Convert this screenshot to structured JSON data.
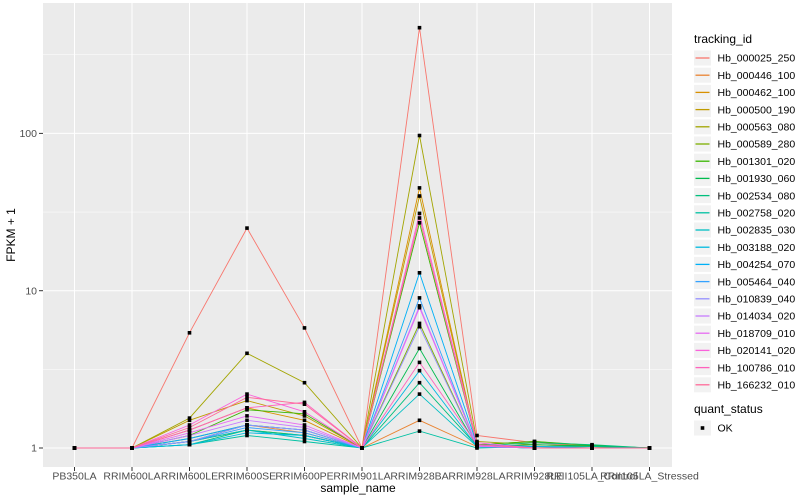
{
  "chart_data": {
    "type": "line",
    "title": "",
    "xlabel": "sample_name",
    "ylabel": "FPKM + 1",
    "y_scale": "log10",
    "ylim": [
      0.76,
      660
    ],
    "yticks": [
      1,
      10,
      100
    ],
    "minor_yticks": [
      3.162,
      31.62,
      316.2
    ],
    "grid": true,
    "legend_position": "right",
    "point_shape": "square",
    "point_color": "#000000",
    "categories": [
      "PB350LA",
      "RRIM600LA",
      "RRIM600LE",
      "RRIM600SE",
      "RRIM600PE",
      "RRIM901LA",
      "RRIM928BA",
      "RRIM928LA",
      "RRIM928LE",
      "RRII105LA_Control",
      "RRII105LA_Stressed"
    ],
    "series": [
      {
        "name": "Hb_000025_250",
        "color": "#F8766D",
        "values": [
          1,
          1,
          5.4,
          25,
          5.8,
          1,
          470,
          1.2,
          1.08,
          1.02,
          1
        ]
      },
      {
        "name": "Hb_000446_100",
        "color": "#EA8331",
        "values": [
          1,
          1,
          1.15,
          1.4,
          1.25,
          1,
          1.5,
          1.02,
          1.05,
          1.02,
          1
        ]
      },
      {
        "name": "Hb_000462_100",
        "color": "#D89000",
        "values": [
          1,
          1,
          1.3,
          1.8,
          1.5,
          1,
          45,
          1.05,
          1.1,
          1.03,
          1
        ]
      },
      {
        "name": "Hb_000500_190",
        "color": "#C09B00",
        "values": [
          1,
          1,
          1.5,
          2.0,
          1.6,
          1,
          40,
          1.05,
          1.02,
          1,
          1
        ]
      },
      {
        "name": "Hb_000563_080",
        "color": "#A3A500",
        "values": [
          1,
          1,
          1.55,
          4.0,
          2.6,
          1,
          97,
          1.1,
          1.05,
          1.02,
          1
        ]
      },
      {
        "name": "Hb_000589_280",
        "color": "#7CAE00",
        "values": [
          1,
          1,
          1.1,
          1.3,
          1.2,
          1,
          6.2,
          1.02,
          1,
          1,
          1
        ]
      },
      {
        "name": "Hb_001301_020",
        "color": "#39B600",
        "values": [
          1,
          1,
          1.2,
          1.75,
          1.65,
          1,
          27,
          1.05,
          1.1,
          1.04,
          1
        ]
      },
      {
        "name": "Hb_001930_060",
        "color": "#00BB4E",
        "values": [
          1,
          1,
          1.1,
          1.4,
          1.3,
          1,
          4.3,
          1.02,
          1.05,
          1.03,
          1
        ]
      },
      {
        "name": "Hb_002534_080",
        "color": "#00BF7D",
        "values": [
          1,
          1,
          1.05,
          1.3,
          1.2,
          1,
          2.6,
          1.03,
          1.08,
          1.05,
          1
        ]
      },
      {
        "name": "Hb_002758_020",
        "color": "#00C1A3",
        "values": [
          1,
          1,
          1.05,
          1.2,
          1.1,
          1,
          1.28,
          1,
          1.02,
          1.02,
          1
        ]
      },
      {
        "name": "Hb_002835_030",
        "color": "#00BFC4",
        "values": [
          1,
          1,
          1.1,
          1.3,
          1.15,
          1,
          2.2,
          1.02,
          1,
          1,
          1
        ]
      },
      {
        "name": "Hb_003188_020",
        "color": "#00BAE0",
        "values": [
          1,
          1,
          1.05,
          1.25,
          1.2,
          1,
          3.1,
          1.02,
          1,
          1,
          1
        ]
      },
      {
        "name": "Hb_004254_070",
        "color": "#00B0F6",
        "values": [
          1,
          1,
          1.15,
          1.4,
          1.3,
          1,
          13,
          1.05,
          1.02,
          1,
          1
        ]
      },
      {
        "name": "Hb_005464_040",
        "color": "#35A2FF",
        "values": [
          1,
          1,
          1.1,
          1.35,
          1.25,
          1,
          9,
          1.02,
          1,
          1,
          1
        ]
      },
      {
        "name": "Hb_010839_040",
        "color": "#9590FF",
        "values": [
          1,
          1,
          1.1,
          1.4,
          1.3,
          1,
          5.9,
          1.02,
          1,
          1,
          1
        ]
      },
      {
        "name": "Hb_014034_020",
        "color": "#C77CFF",
        "values": [
          1,
          1,
          1.2,
          1.5,
          1.35,
          1,
          8,
          1.03,
          1,
          1,
          1
        ]
      },
      {
        "name": "Hb_018709_010",
        "color": "#E76BF3",
        "values": [
          1,
          1,
          1.25,
          1.6,
          1.4,
          1,
          7.8,
          1.03,
          1,
          1,
          1
        ]
      },
      {
        "name": "Hb_020141_020",
        "color": "#FA62DB",
        "values": [
          1,
          1,
          1.4,
          2.2,
          1.7,
          1,
          31,
          1.08,
          1,
          1,
          1
        ]
      },
      {
        "name": "Hb_100786_010",
        "color": "#FF62BC",
        "values": [
          1,
          1,
          1.3,
          1.8,
          1.95,
          1,
          3.5,
          1.05,
          1,
          1,
          1
        ]
      },
      {
        "name": "Hb_166232_010",
        "color": "#FF6A98",
        "values": [
          1,
          1,
          1.35,
          2.1,
          1.9,
          1,
          29,
          1.05,
          1,
          1,
          1
        ]
      }
    ],
    "legend": {
      "title": "tracking_id"
    },
    "quant_legend": {
      "title": "quant_status",
      "items": [
        {
          "label": "OK",
          "marker": "black-square"
        }
      ]
    }
  },
  "colors": {
    "page_bg": "#FFFFFF",
    "panel_bg": "#EBEBEB",
    "grid": "#FFFFFF",
    "tick_mark": "#333333",
    "tick_label": "#4D4D4D",
    "axis_title": "#000000",
    "legend_key_bg": "#F2F2F2",
    "legend_text": "#000000"
  }
}
